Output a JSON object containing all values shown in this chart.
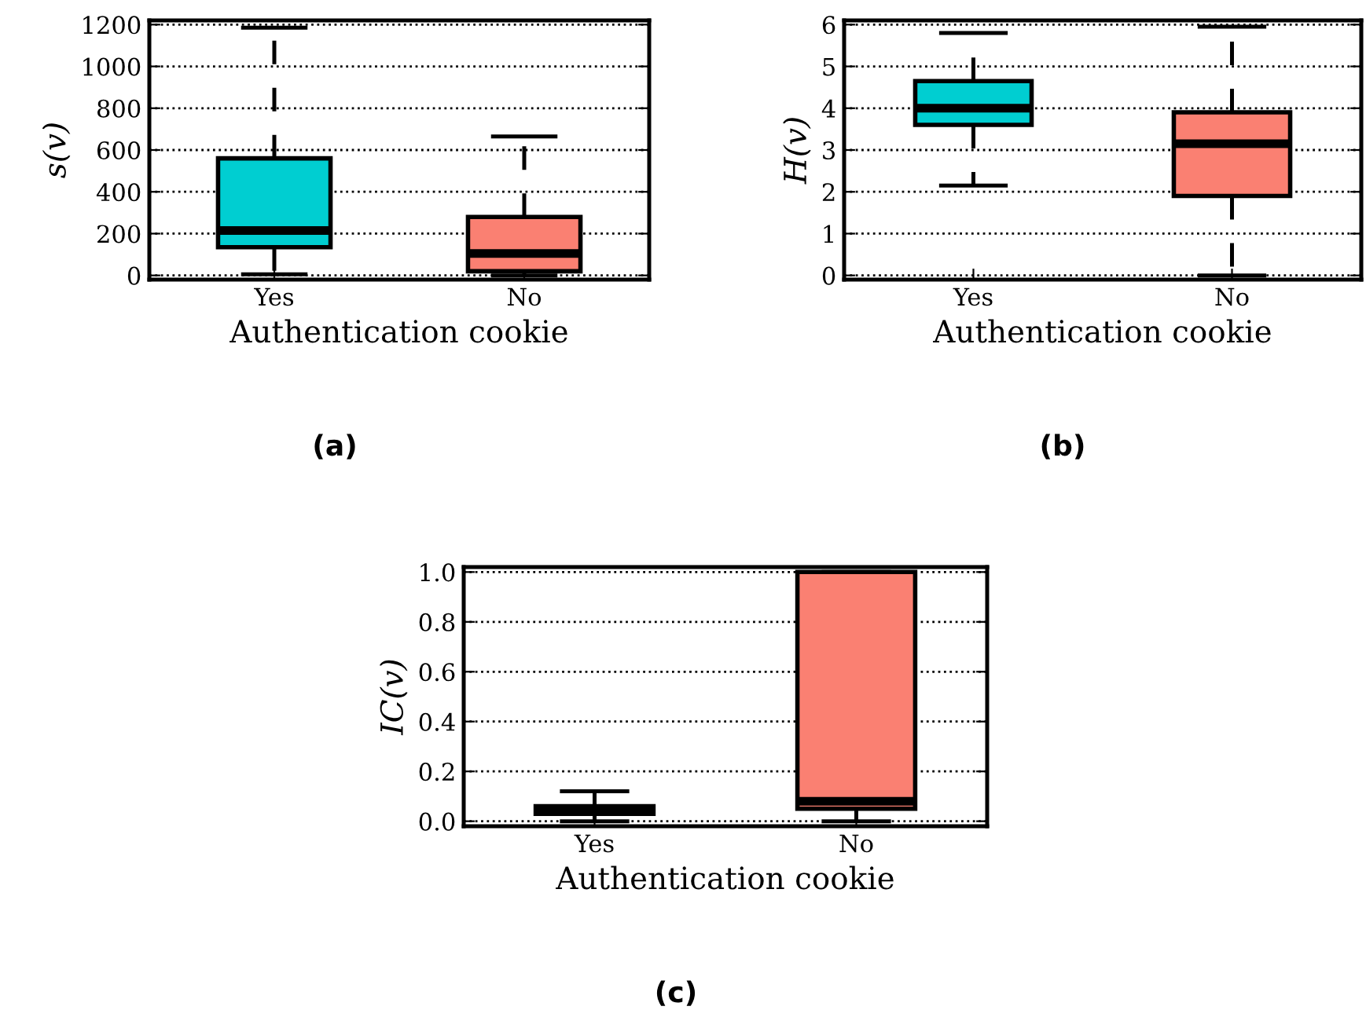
{
  "chart_data": [
    {
      "type": "box",
      "xlabel": "Authentication cookie",
      "ylabel": "s(v)",
      "categories": [
        "Yes",
        "No"
      ],
      "colors": [
        "#00ced1",
        "#fa8072"
      ],
      "boxes": [
        {
          "low": 5,
          "q1": 135,
          "median": 215,
          "q3": 560,
          "high": 1185
        },
        {
          "low": 0,
          "q1": 20,
          "median": 105,
          "q3": 280,
          "high": 665
        }
      ],
      "ylim": [
        -20,
        1220
      ],
      "yticks": [
        0,
        200,
        400,
        600,
        800,
        1000,
        1200
      ],
      "grid": "y",
      "line_style": "dashed",
      "annotations": [
        "(a)"
      ]
    },
    {
      "type": "box",
      "xlabel": "Authentication cookie",
      "ylabel": "H(v)",
      "categories": [
        "Yes",
        "No"
      ],
      "colors": [
        "#00ced1",
        "#fa8072"
      ],
      "boxes": [
        {
          "low": 2.15,
          "q1": 3.6,
          "median": 4.0,
          "q3": 4.65,
          "high": 5.8
        },
        {
          "low": 0,
          "q1": 1.9,
          "median": 3.15,
          "q3": 3.9,
          "high": 5.95
        }
      ],
      "ylim": [
        -0.1,
        6.1
      ],
      "yticks": [
        0,
        1,
        2,
        3,
        4,
        5,
        6
      ],
      "grid": "y",
      "line_style": "dashed",
      "annotations": [
        "(b)"
      ]
    },
    {
      "type": "box",
      "xlabel": "Authentication cookie",
      "ylabel": "IC(v)",
      "categories": [
        "Yes",
        "No"
      ],
      "colors": [
        "#00ced1",
        "#fa8072"
      ],
      "boxes": [
        {
          "low": 0.0,
          "q1": 0.03,
          "median": 0.045,
          "q3": 0.06,
          "high": 0.12
        },
        {
          "low": 0.0,
          "q1": 0.05,
          "median": 0.08,
          "q3": 1.0,
          "high": 1.0
        }
      ],
      "ylim": [
        -0.02,
        1.02
      ],
      "yticks": [
        {
          "value": 0,
          "label": "0.0"
        },
        0.2,
        0.4,
        0.6,
        0.8,
        {
          "value": 1,
          "label": "1.0"
        }
      ],
      "grid": "y",
      "line_style": "dashed",
      "annotations": [
        "(c)"
      ]
    }
  ]
}
